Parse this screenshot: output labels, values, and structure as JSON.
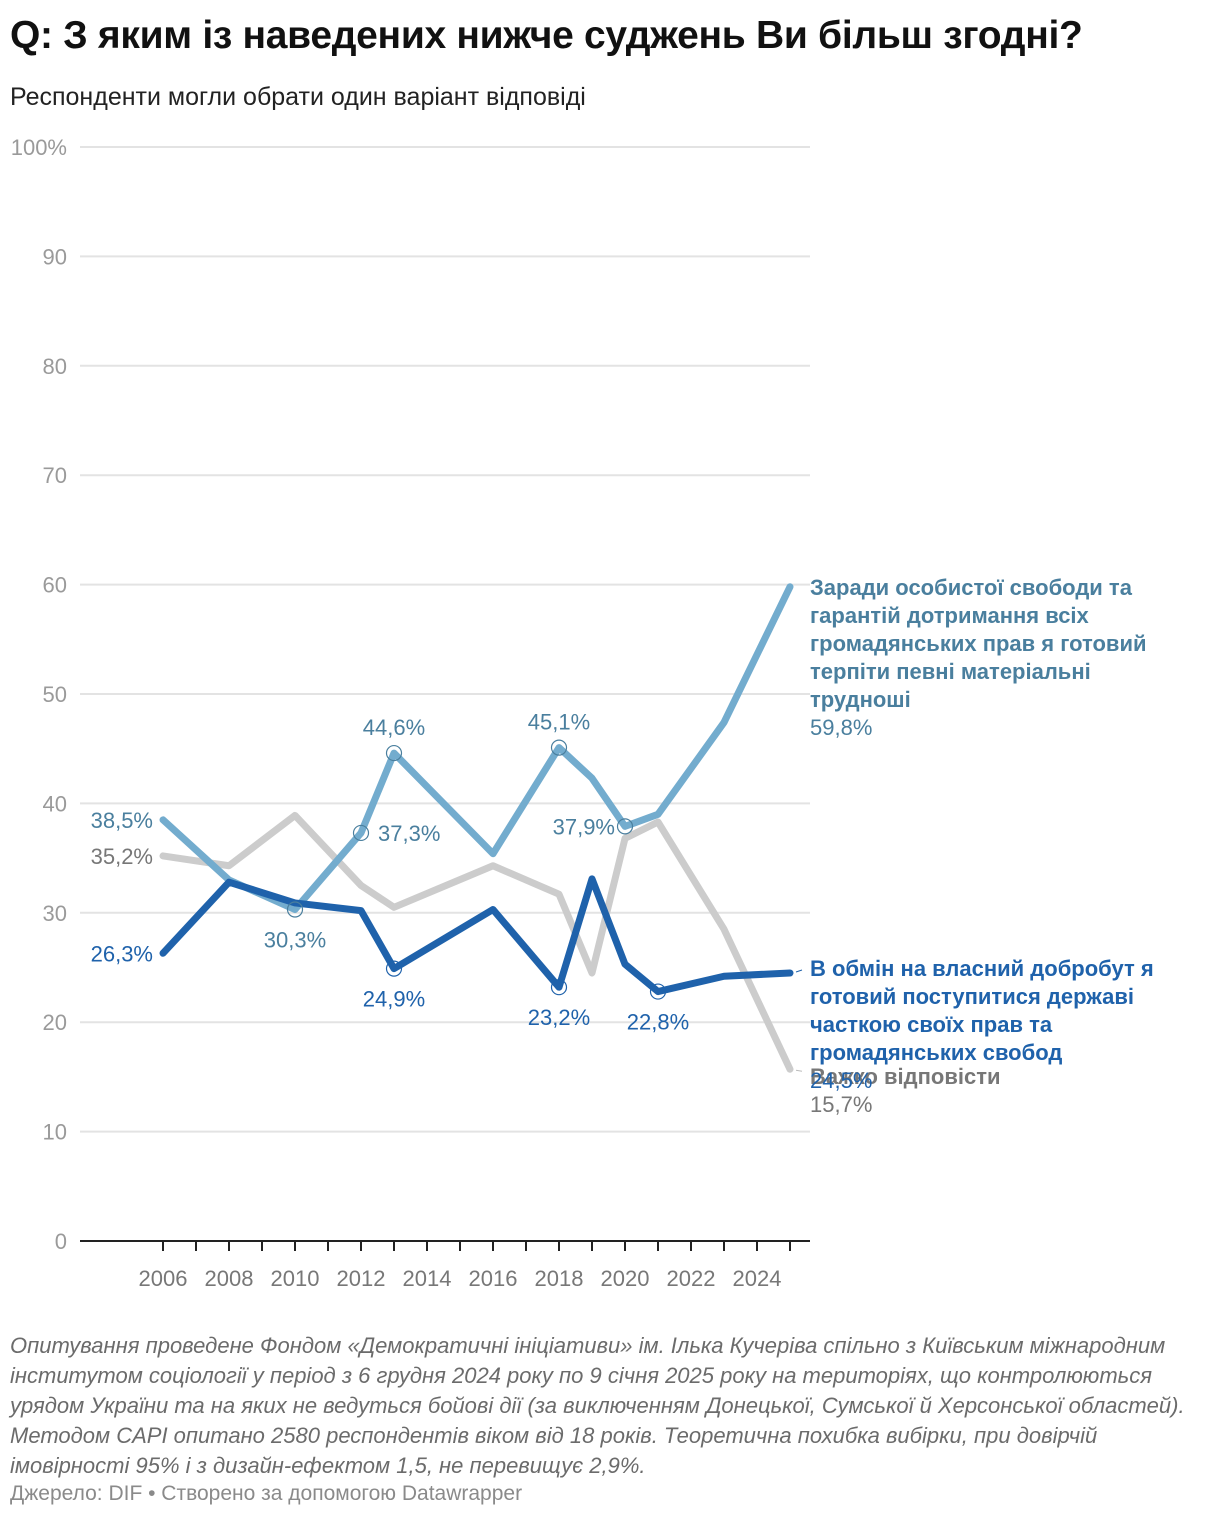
{
  "header": {
    "title": "Q: З яким із наведених нижче суджень Ви більш згодні?",
    "subtitle": "Респонденти могли обрати один варіант відповіді"
  },
  "chart_data": {
    "type": "line",
    "title": "Q: З яким із наведених нижче суджень Ви більш згодні?",
    "subtitle": "Респонденти могли обрати один варіант відповіді",
    "xlabel": "",
    "ylabel": "",
    "ylim": [
      0,
      100
    ],
    "xlim": [
      2006,
      2025
    ],
    "grid": true,
    "y_ticks": [
      0,
      10,
      20,
      30,
      40,
      50,
      60,
      70,
      80,
      90,
      100
    ],
    "y_tick_labels": [
      "0",
      "10",
      "20",
      "30",
      "40",
      "50",
      "60",
      "70",
      "80",
      "90",
      "100%"
    ],
    "x_tick_labels": [
      "2006",
      "2008",
      "2010",
      "2012",
      "2014",
      "2016",
      "2018",
      "2020",
      "2022",
      "2024"
    ],
    "x_minor_ticks": [
      2006,
      2007,
      2008,
      2009,
      2010,
      2011,
      2012,
      2013,
      2014,
      2015,
      2016,
      2017,
      2018,
      2019,
      2020,
      2021,
      2022,
      2023,
      2024,
      2025
    ],
    "x": [
      2006,
      2008,
      2010,
      2012,
      2013,
      2016,
      2018,
      2019,
      2020,
      2021,
      2023,
      2025
    ],
    "series": [
      {
        "name": "Важко відповісти",
        "color": "#cccccc",
        "label_color": "#777777",
        "values": [
          35.2,
          34.3,
          38.9,
          32.5,
          30.5,
          34.3,
          31.7,
          24.5,
          36.8,
          38.3,
          28.5,
          15.7
        ],
        "end_label": "Важко відповісти",
        "end_value": "15,7%"
      },
      {
        "name": "Заради особистої свободи та гарантій дотримання всіх громадянських прав я готовий терпіти певні матеріальні труднощі",
        "color": "#73acce",
        "label_color": "#4a7f9e",
        "values": [
          38.5,
          33.0,
          30.3,
          37.3,
          44.6,
          35.4,
          45.1,
          42.3,
          37.9,
          39.0,
          47.4,
          59.8
        ],
        "end_label_lines": [
          "Заради особистої свободи та",
          "гарантій дотримання всіх",
          "громадянських прав я готовий",
          "терпіти певні матеріальні",
          "трудноші"
        ],
        "end_value": "59,8%"
      },
      {
        "name": "В обмін на власний добробут я готовий поступитися державі часткою своїх прав та громадянських свобод",
        "color": "#1f62ab",
        "label_color": "#1f62ab",
        "values": [
          26.3,
          32.8,
          30.9,
          30.2,
          24.9,
          30.3,
          23.2,
          33.1,
          25.3,
          22.8,
          24.2,
          24.5
        ],
        "end_label_lines": [
          "В обмін на власний добробут я",
          "готовий поступитися державі",
          "часткою своїх прав та",
          "громадянських свобод"
        ],
        "end_value": "24,5%"
      }
    ],
    "annotations": [
      {
        "series": 1,
        "x": 2006,
        "text": "38,5%",
        "pos": "left",
        "circle": false
      },
      {
        "series": 0,
        "x": 2006,
        "text": "35,2%",
        "pos": "left",
        "circle": false
      },
      {
        "series": 2,
        "x": 2006,
        "text": "26,3%",
        "pos": "left",
        "circle": false
      },
      {
        "series": 1,
        "x": 2010,
        "text": "30,3%",
        "pos": "below",
        "circle": true
      },
      {
        "series": 1,
        "x": 2012,
        "text": "37,3%",
        "pos": "right",
        "circle": true
      },
      {
        "series": 1,
        "x": 2013,
        "text": "44,6%",
        "pos": "above",
        "circle": true
      },
      {
        "series": 2,
        "x": 2013,
        "text": "24,9%",
        "pos": "below",
        "circle": true
      },
      {
        "series": 1,
        "x": 2018,
        "text": "45,1%",
        "pos": "above",
        "circle": true
      },
      {
        "series": 2,
        "x": 2018,
        "text": "23,2%",
        "pos": "below",
        "circle": true
      },
      {
        "series": 1,
        "x": 2020,
        "text": "37,9%",
        "pos": "left",
        "circle": true
      },
      {
        "series": 2,
        "x": 2021,
        "text": "22,8%",
        "pos": "below",
        "circle": true
      }
    ]
  },
  "footer": {
    "notes": "Опитування проведене Фондом «Демократичні ініціативи» ім. Ілька Кучеріва спільно з Київським міжнародним інститутом соціології у період з 6 грудня 2024 року по 9 січня 2025 року на територіях, що контролюються урядом України та на яких не ведуться бойові дії (за виключенням Донецької, Сумської й Херсонської областей). Методом CAPI опитано 2580 респондентів віком від 18 років. Теоретична похибка вибірки, при довірчій імовірності 95% і з дизайн-ефектом 1,5, не перевищує 2,9%.",
    "byline": "Джерело: DIF • Створено за допомогою Datawrapper"
  }
}
